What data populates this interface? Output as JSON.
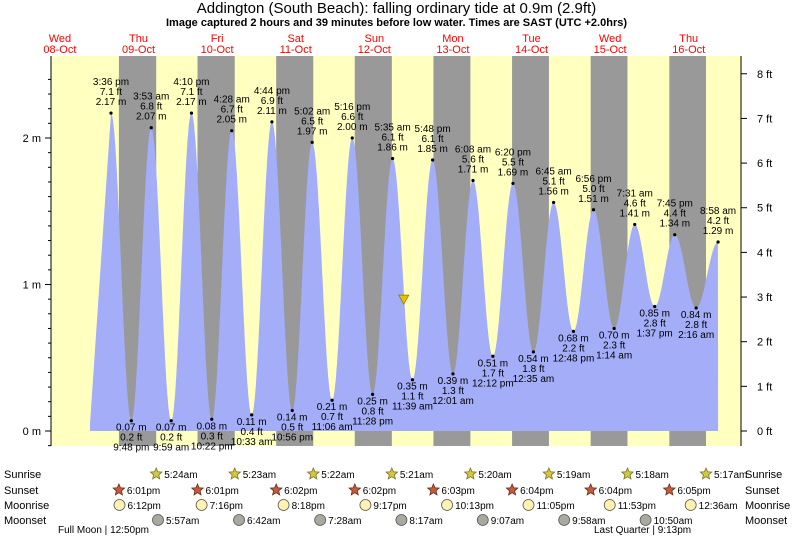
{
  "title": "Addington (South Beach): falling  ordinary tide at 0.9m (2.9ft)",
  "subtitle": "Image captured 2 hours and 39 minutes before low water. Times are SAST (UTC +2.0hrs)",
  "colors": {
    "water": "#a3adf8",
    "night": "#999999",
    "day": "#ffffc0",
    "sun": "#d2c93f",
    "sunset": "#c85a3c",
    "moonrise": "#fff2b0",
    "moonset": "#a9a9a0",
    "date": "#ff0000"
  },
  "chart_data": {
    "type": "area",
    "ylabel_left": "m",
    "ylabel_right": "ft",
    "ylim_m": [
      -0.15,
      2.42
    ],
    "yticks_m": [
      "0 m",
      "1 m",
      "2 m"
    ],
    "yticks_ft": [
      "0 ft",
      "1 ft",
      "2 ft",
      "3 ft",
      "4 ft",
      "5 ft",
      "6 ft",
      "7 ft",
      "8 ft"
    ],
    "days": [
      {
        "day": "Wed",
        "date": "08-Oct"
      },
      {
        "day": "Thu",
        "date": "09-Oct"
      },
      {
        "day": "Fri",
        "date": "10-Oct"
      },
      {
        "day": "Sat",
        "date": "11-Oct"
      },
      {
        "day": "Sun",
        "date": "12-Oct"
      },
      {
        "day": "Mon",
        "date": "13-Oct"
      },
      {
        "day": "Tue",
        "date": "14-Oct"
      },
      {
        "day": "Wed",
        "date": "15-Oct"
      },
      {
        "day": "Thu",
        "date": "16-Oct"
      }
    ],
    "tides": [
      {
        "type": "high",
        "day_index": 0,
        "hour": 15.6,
        "m": 2.17,
        "time": "3:36 pm",
        "ft": "7.1 ft",
        "mtxt": "2.17 m"
      },
      {
        "type": "low",
        "day_index": 0,
        "hour": 21.8,
        "m": 0.07,
        "time": "9:48 pm",
        "ft": "0.2 ft",
        "mtxt": "0.07 m"
      },
      {
        "type": "high",
        "day_index": 1,
        "hour": 3.883,
        "m": 2.07,
        "time": "3:53 am",
        "ft": "6.8 ft",
        "mtxt": "2.07 m"
      },
      {
        "type": "low",
        "day_index": 1,
        "hour": 9.983,
        "m": 0.07,
        "time": "9:59 am",
        "ft": "0.2 ft",
        "mtxt": "0.07 m"
      },
      {
        "type": "high",
        "day_index": 1,
        "hour": 16.167,
        "m": 2.17,
        "time": "4:10 pm",
        "ft": "7.1 ft",
        "mtxt": "2.17 m"
      },
      {
        "type": "low",
        "day_index": 1,
        "hour": 22.367,
        "m": 0.08,
        "time": "10:22 pm",
        "ft": "0.3 ft",
        "mtxt": "0.08 m"
      },
      {
        "type": "high",
        "day_index": 2,
        "hour": 4.467,
        "m": 2.05,
        "time": "4:28 am",
        "ft": "6.7 ft",
        "mtxt": "2.05 m"
      },
      {
        "type": "low",
        "day_index": 2,
        "hour": 10.55,
        "m": 0.11,
        "time": "10:33 am",
        "ft": "0.4 ft",
        "mtxt": "0.11 m"
      },
      {
        "type": "high",
        "day_index": 2,
        "hour": 16.733,
        "m": 2.11,
        "time": "4:44 pm",
        "ft": "6.9 ft",
        "mtxt": "2.11 m"
      },
      {
        "type": "low",
        "day_index": 2,
        "hour": 22.933,
        "m": 0.14,
        "time": "10:56 pm",
        "ft": "0.5 ft",
        "mtxt": "0.14 m"
      },
      {
        "type": "high",
        "day_index": 3,
        "hour": 5.033,
        "m": 1.97,
        "time": "5:02 am",
        "ft": "6.5 ft",
        "mtxt": "1.97 m"
      },
      {
        "type": "low",
        "day_index": 3,
        "hour": 11.1,
        "m": 0.21,
        "time": "11:06 am",
        "ft": "0.7 ft",
        "mtxt": "0.21 m"
      },
      {
        "type": "high",
        "day_index": 3,
        "hour": 17.267,
        "m": 2.0,
        "time": "5:16 pm",
        "ft": "6.6 ft",
        "mtxt": "2.00 m"
      },
      {
        "type": "low",
        "day_index": 3,
        "hour": 23.467,
        "m": 0.25,
        "time": "11:28 pm",
        "ft": "0.8 ft",
        "mtxt": "0.25 m"
      },
      {
        "type": "high",
        "day_index": 4,
        "hour": 5.583,
        "m": 1.86,
        "time": "5:35 am",
        "ft": "6.1 ft",
        "mtxt": "1.86 m"
      },
      {
        "type": "low",
        "day_index": 4,
        "hour": 11.65,
        "m": 0.35,
        "time": "11:39 am",
        "ft": "1.1 ft",
        "mtxt": "0.35 m"
      },
      {
        "type": "high",
        "day_index": 4,
        "hour": 17.8,
        "m": 1.85,
        "time": "5:48 pm",
        "ft": "6.1 ft",
        "mtxt": "1.85 m"
      },
      {
        "type": "low",
        "day_index": 5,
        "hour": 0.017,
        "m": 0.39,
        "time": "12:01 am",
        "ft": "1.3 ft",
        "mtxt": "0.39 m"
      },
      {
        "type": "high",
        "day_index": 5,
        "hour": 6.133,
        "m": 1.71,
        "time": "6:08 am",
        "ft": "5.6 ft",
        "mtxt": "1.71 m"
      },
      {
        "type": "low",
        "day_index": 5,
        "hour": 12.2,
        "m": 0.51,
        "time": "12:12 pm",
        "ft": "1.7 ft",
        "mtxt": "0.51 m"
      },
      {
        "type": "high",
        "day_index": 5,
        "hour": 18.333,
        "m": 1.69,
        "time": "6:20 pm",
        "ft": "5.5 ft",
        "mtxt": "1.69 m"
      },
      {
        "type": "low",
        "day_index": 6,
        "hour": 0.583,
        "m": 0.54,
        "time": "12:35 am",
        "ft": "1.8 ft",
        "mtxt": "0.54 m"
      },
      {
        "type": "high",
        "day_index": 6,
        "hour": 6.75,
        "m": 1.56,
        "time": "6:45 am",
        "ft": "5.1 ft",
        "mtxt": "1.56 m"
      },
      {
        "type": "low",
        "day_index": 6,
        "hour": 12.8,
        "m": 0.68,
        "time": "12:48 pm",
        "ft": "2.2 ft",
        "mtxt": "0.68 m"
      },
      {
        "type": "high",
        "day_index": 6,
        "hour": 18.933,
        "m": 1.51,
        "time": "6:56 pm",
        "ft": "5.0 ft",
        "mtxt": "1.51 m"
      },
      {
        "type": "low",
        "day_index": 7,
        "hour": 1.233,
        "m": 0.7,
        "time": "1:14 am",
        "ft": "2.3 ft",
        "mtxt": "0.70 m"
      },
      {
        "type": "high",
        "day_index": 7,
        "hour": 7.517,
        "m": 1.41,
        "time": "7:31 am",
        "ft": "4.6 ft",
        "mtxt": "1.41 m"
      },
      {
        "type": "low",
        "day_index": 7,
        "hour": 13.617,
        "m": 0.85,
        "time": "1:37 pm",
        "ft": "2.8 ft",
        "mtxt": "0.85 m"
      },
      {
        "type": "high",
        "day_index": 7,
        "hour": 19.75,
        "m": 1.34,
        "time": "7:45 pm",
        "ft": "4.4 ft",
        "mtxt": "1.34 m"
      },
      {
        "type": "low",
        "day_index": 8,
        "hour": 2.267,
        "m": 0.84,
        "time": "2:16 am",
        "ft": "2.8 ft",
        "mtxt": "0.84 m"
      },
      {
        "type": "high",
        "day_index": 8,
        "hour": 8.967,
        "m": 1.29,
        "time": "8:58 am",
        "ft": "4.2 ft",
        "mtxt": "1.29 m"
      }
    ],
    "current": {
      "day_index": 4,
      "hour": 9.0,
      "m": 0.9
    },
    "row_labels": [
      "Sunrise",
      "Sunset",
      "Moonrise",
      "Moonset"
    ],
    "sunrise": [
      {
        "day_index": 1,
        "hour": 5.4,
        "time": "5:24am"
      },
      {
        "day_index": 2,
        "hour": 5.383,
        "time": "5:23am"
      },
      {
        "day_index": 3,
        "hour": 5.367,
        "time": "5:22am"
      },
      {
        "day_index": 4,
        "hour": 5.35,
        "time": "5:21am"
      },
      {
        "day_index": 5,
        "hour": 5.333,
        "time": "5:20am"
      },
      {
        "day_index": 6,
        "hour": 5.317,
        "time": "5:19am"
      },
      {
        "day_index": 7,
        "hour": 5.3,
        "time": "5:18am"
      },
      {
        "day_index": 8,
        "hour": 5.283,
        "time": "5:17am"
      }
    ],
    "sunset": [
      {
        "day_index": 0,
        "hour": 18.017,
        "time": "6:01pm"
      },
      {
        "day_index": 1,
        "hour": 18.017,
        "time": "6:01pm"
      },
      {
        "day_index": 2,
        "hour": 18.033,
        "time": "6:02pm"
      },
      {
        "day_index": 3,
        "hour": 18.033,
        "time": "6:02pm"
      },
      {
        "day_index": 4,
        "hour": 18.05,
        "time": "6:03pm"
      },
      {
        "day_index": 5,
        "hour": 18.067,
        "time": "6:04pm"
      },
      {
        "day_index": 6,
        "hour": 18.067,
        "time": "6:04pm"
      },
      {
        "day_index": 7,
        "hour": 18.083,
        "time": "6:05pm"
      }
    ],
    "moonrise": [
      {
        "day_index": 0,
        "hour": 18.2,
        "time": "6:12pm"
      },
      {
        "day_index": 1,
        "hour": 19.267,
        "time": "7:16pm"
      },
      {
        "day_index": 2,
        "hour": 20.3,
        "time": "8:18pm"
      },
      {
        "day_index": 3,
        "hour": 21.283,
        "time": "9:17pm"
      },
      {
        "day_index": 4,
        "hour": 22.217,
        "time": "10:13pm"
      },
      {
        "day_index": 5,
        "hour": 23.083,
        "time": "11:05pm"
      },
      {
        "day_index": 6,
        "hour": 23.883,
        "time": "11:53pm"
      },
      {
        "day_index": 8,
        "hour": 0.6,
        "time": "12:36am"
      }
    ],
    "moonset": [
      {
        "day_index": 1,
        "hour": 5.95,
        "time": "5:57am"
      },
      {
        "day_index": 2,
        "hour": 6.7,
        "time": "6:42am"
      },
      {
        "day_index": 3,
        "hour": 7.467,
        "time": "7:28am"
      },
      {
        "day_index": 4,
        "hour": 8.283,
        "time": "8:17am"
      },
      {
        "day_index": 5,
        "hour": 9.117,
        "time": "9:07am"
      },
      {
        "day_index": 6,
        "hour": 9.967,
        "time": "9:58am"
      },
      {
        "day_index": 7,
        "hour": 10.833,
        "time": "10:50am"
      }
    ],
    "moon_phases": [
      {
        "label": "Full Moon",
        "time": "12:50pm"
      },
      {
        "label": "Last Quarter",
        "time": "9:13pm"
      }
    ]
  }
}
